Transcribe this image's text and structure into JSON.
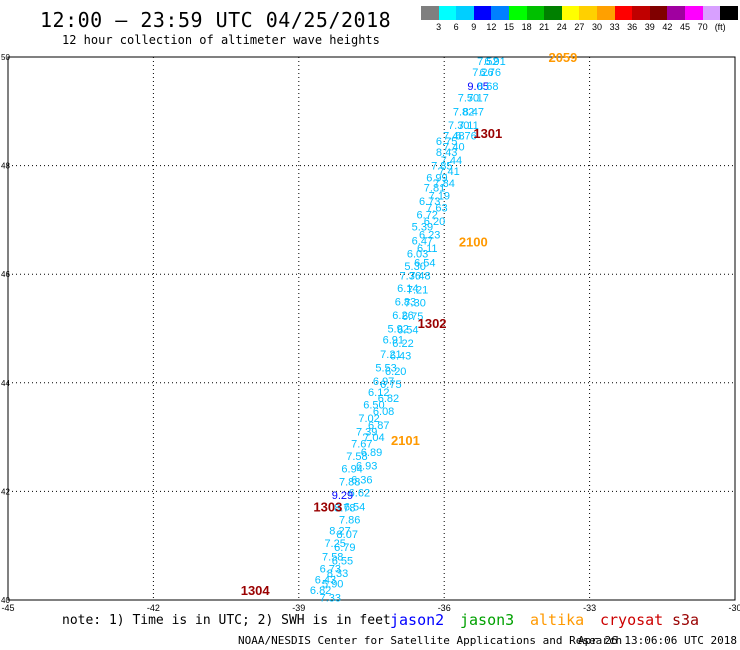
{
  "header": {
    "title": "12:00 – 23:59 UTC 04/25/2018",
    "subtitle": "12 hour collection of altimeter wave heights"
  },
  "colorbar": {
    "colors": [
      "#7f7f7f",
      "#00ffff",
      "#00cfff",
      "#0000ff",
      "#0080ff",
      "#00ff00",
      "#00c000",
      "#008000",
      "#ffff00",
      "#ffd000",
      "#ffa000",
      "#ff0000",
      "#c00000",
      "#800000",
      "#a000a0",
      "#ff00ff",
      "#d8a0ff",
      "#000000"
    ],
    "labels": [
      "3",
      "6",
      "9",
      "12",
      "15",
      "18",
      "21",
      "24",
      "27",
      "30",
      "33",
      "36",
      "39",
      "42",
      "45",
      "70",
      "(ft)"
    ]
  },
  "footer": {
    "note": "note: 1) Time is in UTC; 2) SWH is in feet",
    "satellites": [
      {
        "name": "jason2",
        "color": "#0000ff"
      },
      {
        "name": "jason3",
        "color": "#00a000"
      },
      {
        "name": "altika",
        "color": "#ff9900"
      },
      {
        "name": "cryosat",
        "color": "#cc0000"
      },
      {
        "name": "s3a",
        "color": "#990000"
      }
    ],
    "credit": "NOAA/NESDIS Center for Satellite Applications and Research",
    "timestamp": "Apr 26 13:06:06 UTC 2018"
  },
  "chart_data": {
    "type": "scatter",
    "xlim": [
      -45,
      -30
    ],
    "ylim": [
      40,
      50
    ],
    "x_ticks": [
      "-45",
      "-42",
      "-39",
      "-36",
      "-33",
      "-30"
    ],
    "y_ticks": [
      "40",
      "42",
      "44",
      "46",
      "48",
      "50"
    ],
    "grid": true,
    "track_labels": [
      {
        "text": "2059",
        "lon": -33.55,
        "lat": 50.0,
        "color": "#ff9900"
      },
      {
        "text": "1301",
        "lon": -35.1,
        "lat": 48.6,
        "color": "#990000"
      },
      {
        "text": "2100",
        "lon": -35.4,
        "lat": 46.6,
        "color": "#ff9900"
      },
      {
        "text": "1302",
        "lon": -36.25,
        "lat": 45.1,
        "color": "#990000"
      },
      {
        "text": "2101",
        "lon": -36.8,
        "lat": 42.95,
        "color": "#ff9900"
      },
      {
        "text": "1303",
        "lon": -38.4,
        "lat": 41.72,
        "color": "#990000"
      },
      {
        "text": "1304",
        "lon": -39.9,
        "lat": 40.18,
        "color": "#990000"
      }
    ],
    "points": [
      {
        "lon": -35.1,
        "lat": 49.93,
        "v": "7.52",
        "color": "#00bfff"
      },
      {
        "lon": -34.95,
        "lat": 49.93,
        "v": "6.91",
        "color": "#00bfff"
      },
      {
        "lon": -35.2,
        "lat": 49.72,
        "v": "7.26",
        "color": "#00bfff"
      },
      {
        "lon": -35.05,
        "lat": 49.72,
        "v": "6.76",
        "color": "#00bfff"
      },
      {
        "lon": -35.3,
        "lat": 49.47,
        "v": "9.05",
        "color": "#0000ff"
      },
      {
        "lon": -35.1,
        "lat": 49.47,
        "v": "8.68",
        "color": "#00bfff"
      },
      {
        "lon": -35.5,
        "lat": 49.25,
        "v": "7.50",
        "color": "#00bfff"
      },
      {
        "lon": -35.3,
        "lat": 49.25,
        "v": "7.17",
        "color": "#00bfff"
      },
      {
        "lon": -35.6,
        "lat": 49.0,
        "v": "7.82",
        "color": "#00bfff"
      },
      {
        "lon": -35.4,
        "lat": 49.0,
        "v": "8.47",
        "color": "#00bfff"
      },
      {
        "lon": -35.7,
        "lat": 48.75,
        "v": "7.30",
        "color": "#00bfff"
      },
      {
        "lon": -35.5,
        "lat": 48.75,
        "v": "7.11",
        "color": "#00bfff"
      },
      {
        "lon": -35.8,
        "lat": 48.55,
        "v": "7.48",
        "color": "#00bfff"
      },
      {
        "lon": -35.55,
        "lat": 48.55,
        "v": "6.76",
        "color": "#00bfff"
      },
      {
        "lon": -35.95,
        "lat": 48.45,
        "v": "6.75",
        "color": "#00bfff"
      },
      {
        "lon": -35.8,
        "lat": 48.35,
        "v": "7.40",
        "color": "#00bfff"
      },
      {
        "lon": -35.95,
        "lat": 48.25,
        "v": "8.43",
        "color": "#00bfff"
      },
      {
        "lon": -35.85,
        "lat": 48.1,
        "v": "7.44",
        "color": "#00bfff"
      },
      {
        "lon": -36.05,
        "lat": 48.0,
        "v": "7.85",
        "color": "#00bfff"
      },
      {
        "lon": -35.9,
        "lat": 47.9,
        "v": "7.41",
        "color": "#00bfff"
      },
      {
        "lon": -36.15,
        "lat": 47.78,
        "v": "6.99",
        "color": "#00bfff"
      },
      {
        "lon": -36.0,
        "lat": 47.68,
        "v": "7.84",
        "color": "#00bfff"
      },
      {
        "lon": -36.2,
        "lat": 47.6,
        "v": "7.81",
        "color": "#00bfff"
      },
      {
        "lon": -36.1,
        "lat": 47.45,
        "v": "7.19",
        "color": "#00bfff"
      },
      {
        "lon": -36.3,
        "lat": 47.35,
        "v": "6.73",
        "color": "#00bfff"
      },
      {
        "lon": -36.15,
        "lat": 47.23,
        "v": "7.63",
        "color": "#00bfff"
      },
      {
        "lon": -36.35,
        "lat": 47.1,
        "v": "6.72",
        "color": "#00bfff"
      },
      {
        "lon": -36.2,
        "lat": 46.98,
        "v": "6.20",
        "color": "#00bfff"
      },
      {
        "lon": -36.45,
        "lat": 46.88,
        "v": "5.39",
        "color": "#00bfff"
      },
      {
        "lon": -36.3,
        "lat": 46.73,
        "v": "6.23",
        "color": "#00bfff"
      },
      {
        "lon": -36.45,
        "lat": 46.62,
        "v": "6.47",
        "color": "#00bfff"
      },
      {
        "lon": -36.35,
        "lat": 46.48,
        "v": "6.11",
        "color": "#00bfff"
      },
      {
        "lon": -36.55,
        "lat": 46.38,
        "v": "6.03",
        "color": "#00bfff"
      },
      {
        "lon": -36.4,
        "lat": 46.22,
        "v": "6.54",
        "color": "#00bfff"
      },
      {
        "lon": -36.6,
        "lat": 46.15,
        "v": "5.30",
        "color": "#00bfff"
      },
      {
        "lon": -36.5,
        "lat": 45.98,
        "v": "7.48",
        "color": "#00bfff"
      },
      {
        "lon": -36.7,
        "lat": 45.98,
        "v": "7.36",
        "color": "#00bfff"
      },
      {
        "lon": -36.55,
        "lat": 45.72,
        "v": "7.21",
        "color": "#00bfff"
      },
      {
        "lon": -36.75,
        "lat": 45.75,
        "v": "6.14",
        "color": "#00bfff"
      },
      {
        "lon": -36.6,
        "lat": 45.48,
        "v": "7.30",
        "color": "#00bfff"
      },
      {
        "lon": -36.8,
        "lat": 45.5,
        "v": "6.83",
        "color": "#00bfff"
      },
      {
        "lon": -36.65,
        "lat": 45.23,
        "v": "6.75",
        "color": "#00bfff"
      },
      {
        "lon": -36.85,
        "lat": 45.25,
        "v": "6.26",
        "color": "#00bfff"
      },
      {
        "lon": -36.75,
        "lat": 44.98,
        "v": "6.54",
        "color": "#00bfff"
      },
      {
        "lon": -36.95,
        "lat": 45.0,
        "v": "5.92",
        "color": "#00bfff"
      },
      {
        "lon": -36.85,
        "lat": 44.73,
        "v": "6.22",
        "color": "#00bfff"
      },
      {
        "lon": -37.05,
        "lat": 44.8,
        "v": "6.91",
        "color": "#00bfff"
      },
      {
        "lon": -36.9,
        "lat": 44.5,
        "v": "6.43",
        "color": "#00bfff"
      },
      {
        "lon": -37.1,
        "lat": 44.53,
        "v": "7.21",
        "color": "#00bfff"
      },
      {
        "lon": -37.0,
        "lat": 44.22,
        "v": "6.20",
        "color": "#00bfff"
      },
      {
        "lon": -37.2,
        "lat": 44.28,
        "v": "5.53",
        "color": "#00bfff"
      },
      {
        "lon": -37.1,
        "lat": 43.98,
        "v": "6.75",
        "color": "#00bfff"
      },
      {
        "lon": -37.25,
        "lat": 44.03,
        "v": "6.97",
        "color": "#00bfff"
      },
      {
        "lon": -37.15,
        "lat": 43.72,
        "v": "6.82",
        "color": "#00bfff"
      },
      {
        "lon": -37.35,
        "lat": 43.83,
        "v": "6.12",
        "color": "#00bfff"
      },
      {
        "lon": -37.25,
        "lat": 43.48,
        "v": "6.08",
        "color": "#00bfff"
      },
      {
        "lon": -37.45,
        "lat": 43.6,
        "v": "6.50",
        "color": "#00bfff"
      },
      {
        "lon": -37.35,
        "lat": 43.22,
        "v": "6.87",
        "color": "#00bfff"
      },
      {
        "lon": -37.55,
        "lat": 43.35,
        "v": "7.02",
        "color": "#00bfff"
      },
      {
        "lon": -37.45,
        "lat": 43.0,
        "v": "7.04",
        "color": "#00bfff"
      },
      {
        "lon": -37.6,
        "lat": 43.1,
        "v": "7.39",
        "color": "#00bfff"
      },
      {
        "lon": -37.5,
        "lat": 42.73,
        "v": "6.89",
        "color": "#00bfff"
      },
      {
        "lon": -37.7,
        "lat": 42.88,
        "v": "7.67",
        "color": "#00bfff"
      },
      {
        "lon": -37.6,
        "lat": 42.48,
        "v": "6.93",
        "color": "#00bfff"
      },
      {
        "lon": -37.8,
        "lat": 42.65,
        "v": "7.58",
        "color": "#00bfff"
      },
      {
        "lon": -37.7,
        "lat": 42.22,
        "v": "6.36",
        "color": "#00bfff"
      },
      {
        "lon": -37.9,
        "lat": 42.42,
        "v": "6.94",
        "color": "#00bfff"
      },
      {
        "lon": -37.75,
        "lat": 41.98,
        "v": "6.62",
        "color": "#00bfff"
      },
      {
        "lon": -37.95,
        "lat": 42.18,
        "v": "7.88",
        "color": "#00bfff"
      },
      {
        "lon": -38.1,
        "lat": 41.93,
        "v": "9.29",
        "color": "#0000ff"
      },
      {
        "lon": -37.85,
        "lat": 41.72,
        "v": "6.54",
        "color": "#00bfff"
      },
      {
        "lon": -38.05,
        "lat": 41.7,
        "v": "8.78",
        "color": "#00bfff"
      },
      {
        "lon": -37.95,
        "lat": 41.48,
        "v": "7.86",
        "color": "#00bfff"
      },
      {
        "lon": -38.15,
        "lat": 41.28,
        "v": "8.27",
        "color": "#00bfff"
      },
      {
        "lon": -38.0,
        "lat": 41.22,
        "v": "8.07",
        "color": "#00bfff"
      },
      {
        "lon": -38.25,
        "lat": 41.05,
        "v": "7.25",
        "color": "#00bfff"
      },
      {
        "lon": -38.05,
        "lat": 40.98,
        "v": "6.79",
        "color": "#00bfff"
      },
      {
        "lon": -38.3,
        "lat": 40.8,
        "v": "7.58",
        "color": "#00bfff"
      },
      {
        "lon": -38.1,
        "lat": 40.73,
        "v": "6.55",
        "color": "#00bfff"
      },
      {
        "lon": -38.35,
        "lat": 40.58,
        "v": "6.73",
        "color": "#00bfff"
      },
      {
        "lon": -38.2,
        "lat": 40.5,
        "v": "8.33",
        "color": "#00bfff"
      },
      {
        "lon": -38.45,
        "lat": 40.38,
        "v": "6.43",
        "color": "#00bfff"
      },
      {
        "lon": -38.3,
        "lat": 40.3,
        "v": "5.90",
        "color": "#00bfff"
      },
      {
        "lon": -38.55,
        "lat": 40.18,
        "v": "6.82",
        "color": "#00bfff"
      },
      {
        "lon": -38.35,
        "lat": 40.05,
        "v": "7.33",
        "color": "#00bfff"
      }
    ]
  }
}
